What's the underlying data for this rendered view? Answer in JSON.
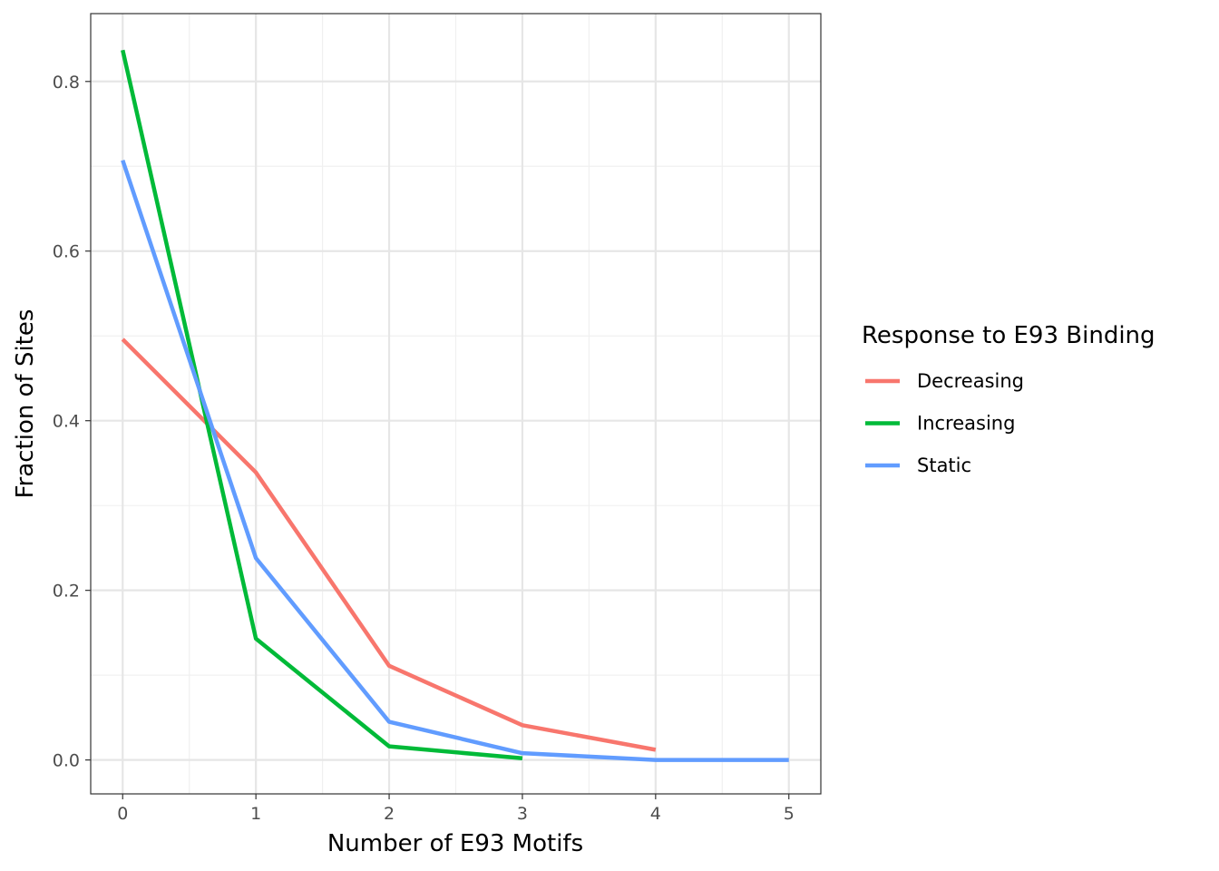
{
  "chart_data": {
    "type": "line",
    "xlabel": "Number of E93 Motifs",
    "ylabel": "Fraction of Sites",
    "xlim": [
      -0.24,
      5.24
    ],
    "ylim": [
      -0.04,
      0.88
    ],
    "x_ticks": [
      0,
      1,
      2,
      3,
      4,
      5
    ],
    "x_tick_labels": [
      "0",
      "1",
      "2",
      "3",
      "4",
      "5"
    ],
    "y_ticks": [
      0.0,
      0.2,
      0.4,
      0.6,
      0.8
    ],
    "y_tick_labels": [
      "0.0",
      "0.2",
      "0.4",
      "0.6",
      "0.8"
    ],
    "grid": true,
    "legend": {
      "title": "Response to E93 Binding",
      "placement": "right"
    },
    "series": [
      {
        "name": "Decreasing",
        "color": "#F8766D",
        "x": [
          0,
          1,
          2,
          3,
          4
        ],
        "y": [
          0.496,
          0.339,
          0.111,
          0.041,
          0.012
        ]
      },
      {
        "name": "Increasing",
        "color": "#00BA38",
        "x": [
          0,
          1,
          2,
          3
        ],
        "y": [
          0.837,
          0.143,
          0.016,
          0.002
        ]
      },
      {
        "name": "Static",
        "color": "#619CFF",
        "x": [
          0,
          1,
          2,
          3,
          4,
          5
        ],
        "y": [
          0.707,
          0.238,
          0.045,
          0.008,
          0.0,
          0.0
        ]
      }
    ]
  }
}
